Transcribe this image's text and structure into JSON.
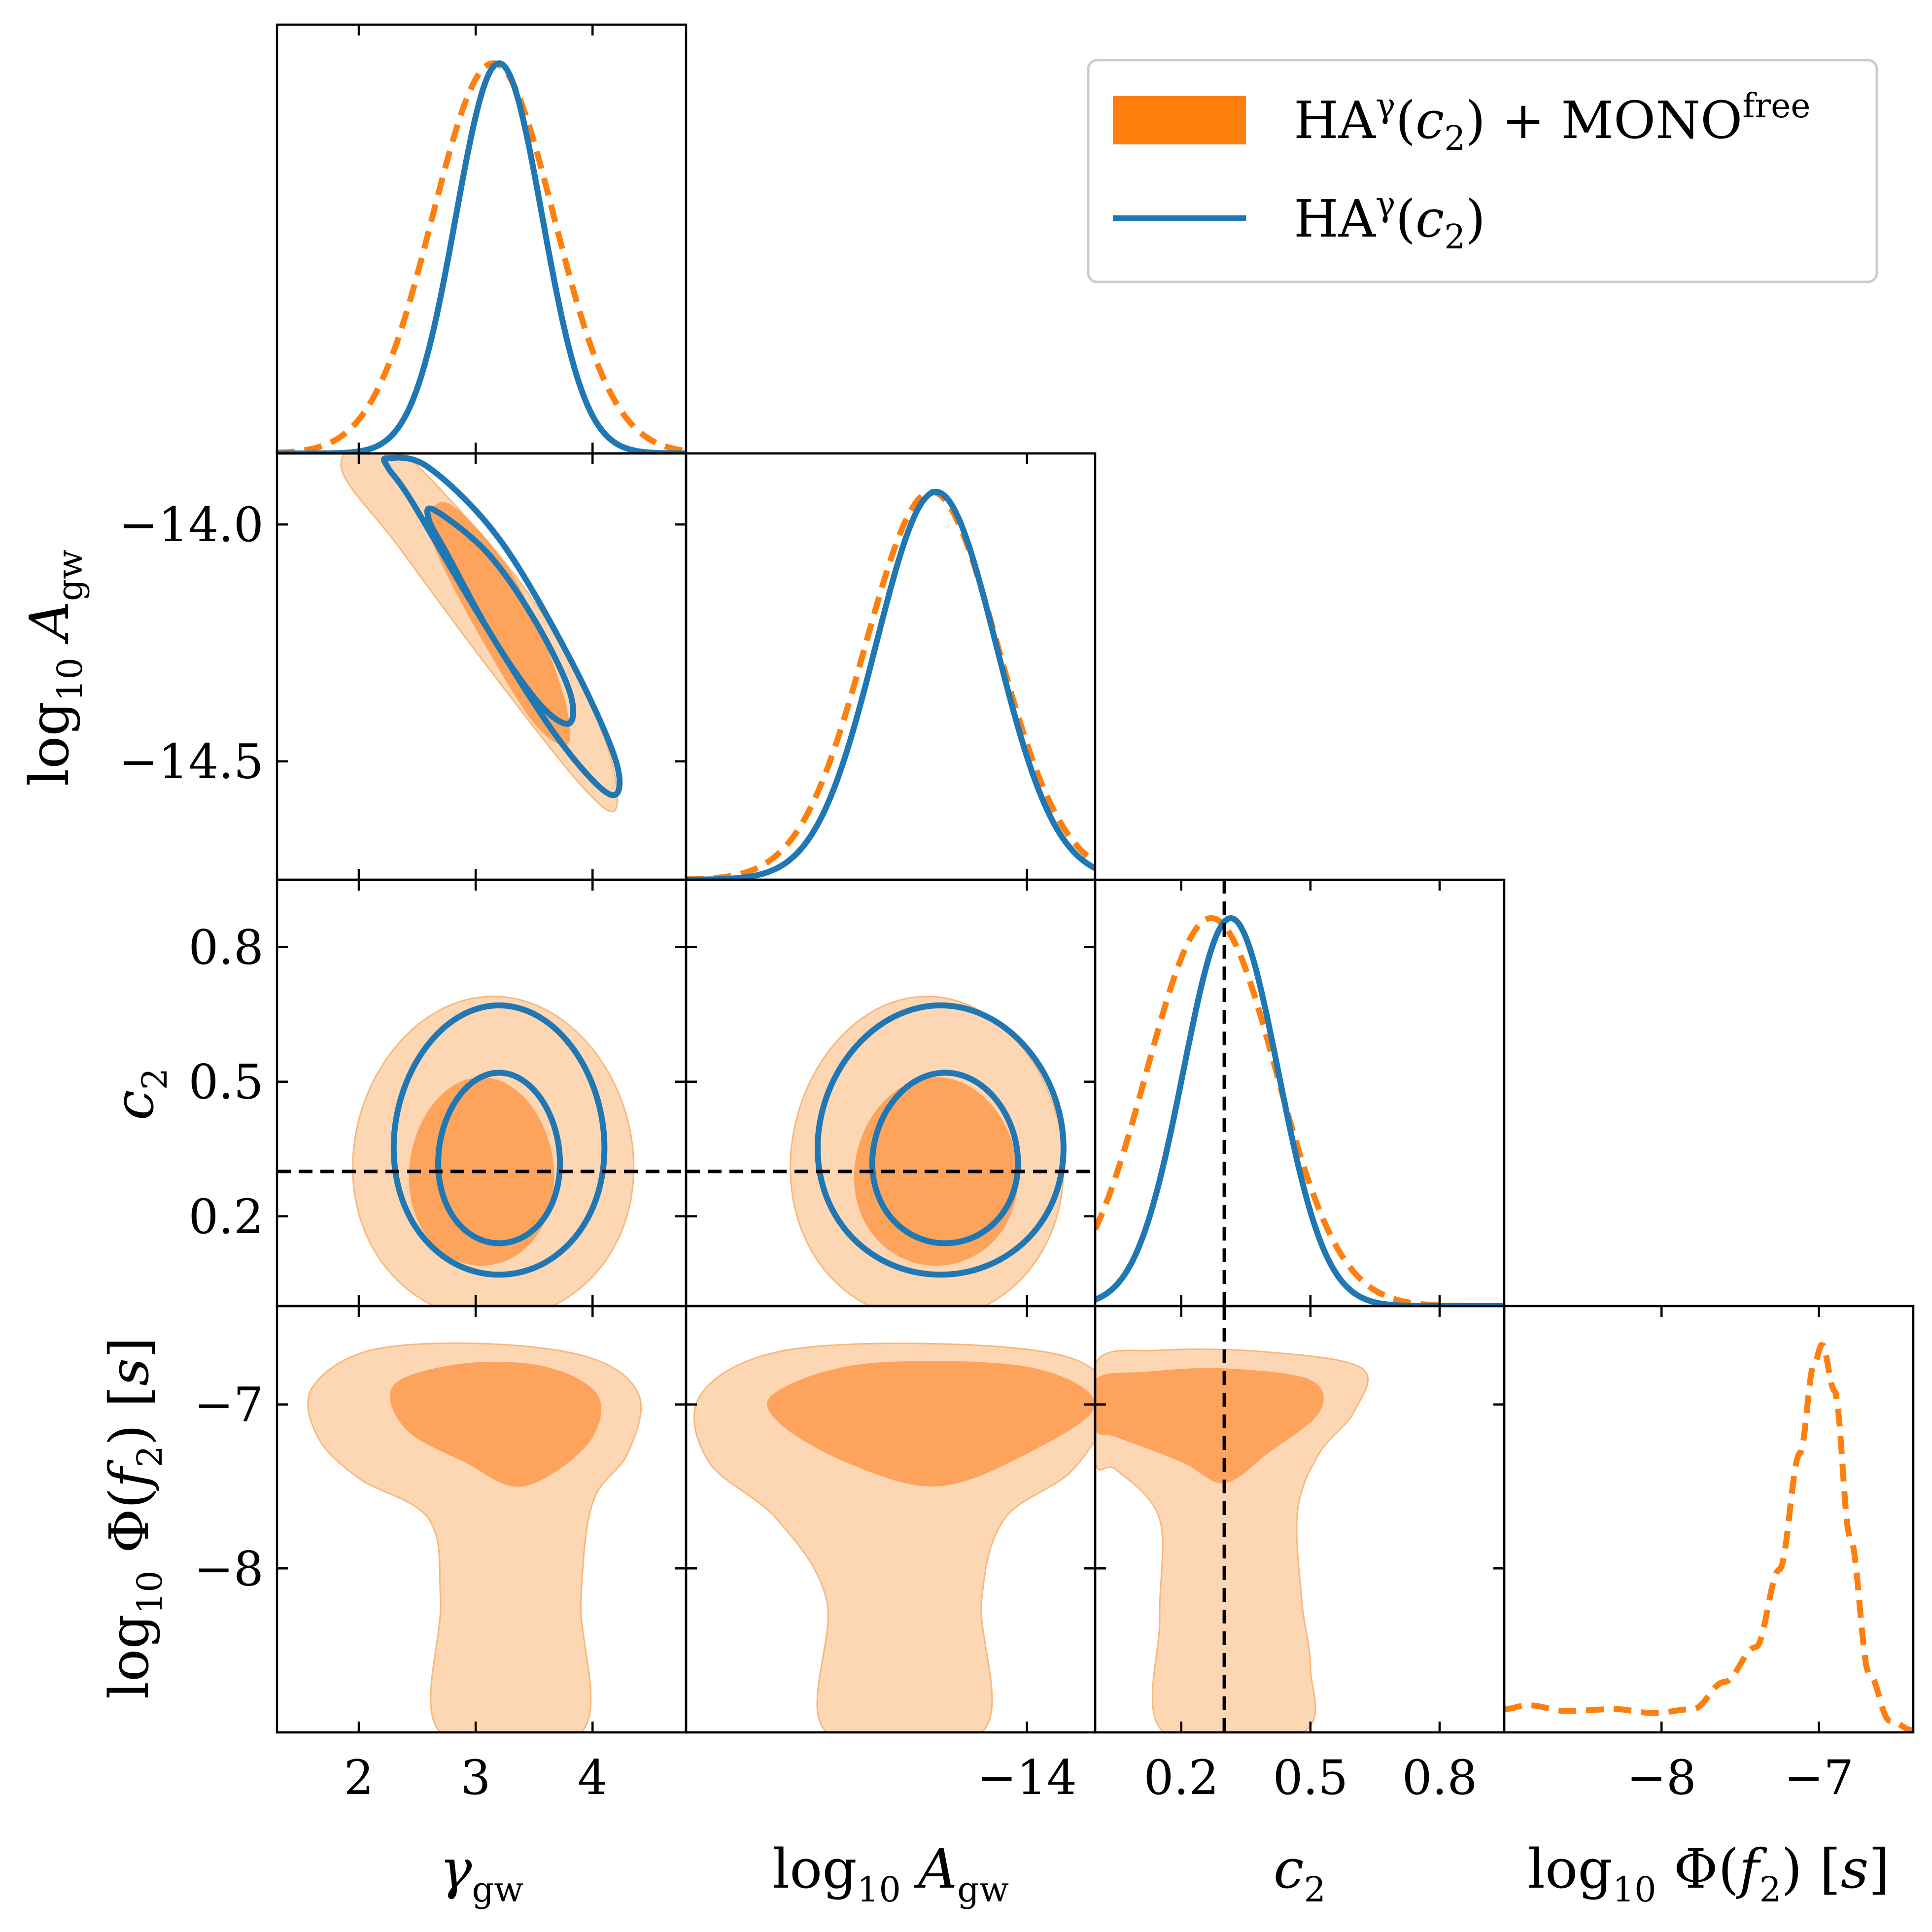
{
  "chart_data": {
    "type": "corner",
    "parameters": [
      {
        "key": "gamma",
        "label": "γgw",
        "range": [
          1.3,
          4.8
        ],
        "ticks": [
          2,
          3,
          4
        ],
        "tick_labels": [
          "2",
          "3",
          "4"
        ]
      },
      {
        "key": "logA",
        "label": "log10 Agw",
        "range": [
          -14.75,
          -13.85
        ],
        "ticks": [
          -14.0,
          -14.5
        ],
        "tick_labels": [
          "−14.0",
          "−14.5"
        ],
        "x_ticks": [
          -14.0
        ],
        "x_tick_labels": [
          "−14"
        ]
      },
      {
        "key": "c2",
        "label": "c2",
        "range": [
          0.0,
          0.95
        ],
        "ticks": [
          0.2,
          0.5,
          0.8
        ],
        "tick_labels": [
          "0.2",
          "0.5",
          "0.8"
        ]
      },
      {
        "key": "logPhi",
        "label": "log10 Φ(f2) [s]",
        "range": [
          -9.0,
          -6.4
        ],
        "ticks": [
          -8,
          -7
        ],
        "tick_labels": [
          "−8",
          "−7"
        ]
      }
    ],
    "axis_titles": {
      "gamma": {
        "main": "γ",
        "sub": "gw"
      },
      "logA": {
        "main": "log",
        "sub": "10",
        "var": "A",
        "var_sub": "gw"
      },
      "c2": {
        "main": "c",
        "sub": "2"
      },
      "logPhi": {
        "main": "log",
        "sub": "10",
        "rest": " Φ(",
        "var": "f",
        "var_sub": "2",
        "tail": ") [",
        "unit": "s",
        "end": "]"
      }
    },
    "legend": [
      {
        "series": "HAγ(c2) + MONOfree",
        "style": "filled-orange",
        "parts": {
          "main": "HA",
          "sup": "γ",
          "open": "(",
          "var": "c",
          "var_sub": "2",
          "close": ") + MONO",
          "sup2": "free"
        }
      },
      {
        "series": "HAγ(c2)",
        "style": "solid-blue",
        "parts": {
          "main": "HA",
          "sup": "γ",
          "open": "(",
          "var": "c",
          "var_sub": "2",
          "close": ")"
        }
      }
    ],
    "reference_value": {
      "parameter": "c2",
      "value": 0.3
    },
    "series": [
      {
        "name": "HAγ(c2) + MONOfree",
        "color": "#ff7f0e",
        "marginals": {
          "gamma": {
            "mean": 3.15,
            "sd": 0.52
          },
          "logA": {
            "mean": -14.21,
            "sd": 0.145
          },
          "c2": {
            "mean": 0.27,
            "sd": 0.15
          },
          "logPhi": {
            "curve": [
              [
                -9.0,
                0.06
              ],
              [
                -8.85,
                0.07
              ],
              [
                -8.6,
                0.055
              ],
              [
                -8.3,
                0.06
              ],
              [
                -8.05,
                0.05
              ],
              [
                -7.8,
                0.06
              ],
              [
                -7.6,
                0.13
              ],
              [
                -7.4,
                0.22
              ],
              [
                -7.25,
                0.42
              ],
              [
                -7.12,
                0.72
              ],
              [
                -7.03,
                0.95
              ],
              [
                -6.98,
                1.0
              ],
              [
                -6.9,
                0.88
              ],
              [
                -6.8,
                0.5
              ],
              [
                -6.68,
                0.15
              ],
              [
                -6.55,
                0.03
              ],
              [
                -6.4,
                0.005
              ]
            ]
          }
        }
      },
      {
        "name": "HAγ(c2)",
        "color": "#1f77b4",
        "marginals": {
          "gamma": {
            "mean": 3.2,
            "sd": 0.37
          },
          "logA": {
            "mean": -14.2,
            "sd": 0.132
          },
          "c2": {
            "mean": 0.315,
            "sd": 0.11
          }
        }
      }
    ],
    "pair_contours": {
      "gamma-logA": {
        "orange_95": [
          [
            2.2,
            -13.82
          ],
          [
            2.9,
            -13.98
          ],
          [
            3.6,
            -14.2
          ],
          [
            4.1,
            -14.45
          ],
          [
            4.2,
            -14.6
          ],
          [
            3.9,
            -14.55
          ],
          [
            3.1,
            -14.3
          ],
          [
            2.35,
            -14.05
          ],
          [
            1.85,
            -13.88
          ]
        ],
        "orange_68": [
          [
            2.8,
            -13.96
          ],
          [
            3.3,
            -14.1
          ],
          [
            3.7,
            -14.32
          ],
          [
            3.8,
            -14.46
          ],
          [
            3.5,
            -14.42
          ],
          [
            3.0,
            -14.22
          ],
          [
            2.65,
            -14.05
          ],
          [
            2.6,
            -13.98
          ]
        ],
        "blue_95": [
          [
            2.25,
            -13.86
          ],
          [
            2.6,
            -13.88
          ],
          [
            3.2,
            -14.03
          ],
          [
            3.8,
            -14.28
          ],
          [
            4.2,
            -14.5
          ],
          [
            4.15,
            -14.57
          ],
          [
            3.7,
            -14.45
          ],
          [
            3.05,
            -14.2
          ],
          [
            2.45,
            -13.95
          ],
          [
            2.25,
            -13.88
          ]
        ],
        "blue_68": [
          [
            2.65,
            -13.97
          ],
          [
            3.1,
            -14.06
          ],
          [
            3.5,
            -14.2
          ],
          [
            3.8,
            -14.35
          ],
          [
            3.8,
            -14.42
          ],
          [
            3.55,
            -14.38
          ],
          [
            3.15,
            -14.24
          ],
          [
            2.75,
            -14.06
          ],
          [
            2.6,
            -13.99
          ]
        ]
      },
      "gamma-c2": {
        "orange_95": {
          "center": [
            3.15,
            0.33
          ],
          "radii": [
            1.2,
            0.36
          ]
        },
        "orange_68": {
          "center": [
            3.05,
            0.3
          ],
          "radii": [
            0.62,
            0.21
          ]
        },
        "blue_95": {
          "center": [
            3.2,
            0.37
          ],
          "radii": [
            0.9,
            0.3
          ]
        },
        "blue_68": {
          "center": [
            3.2,
            0.33
          ],
          "radii": [
            0.52,
            0.19
          ]
        }
      },
      "logA-c2": {
        "orange_95": {
          "center": [
            -14.22,
            0.33
          ],
          "radii": [
            0.3,
            0.36
          ]
        },
        "orange_68": {
          "center": [
            -14.2,
            0.3
          ],
          "radii": [
            0.18,
            0.21
          ]
        },
        "blue_95": {
          "center": [
            -14.19,
            0.37
          ],
          "radii": [
            0.27,
            0.3
          ]
        },
        "blue_68": {
          "center": [
            -14.18,
            0.33
          ],
          "radii": [
            0.16,
            0.19
          ]
        }
      },
      "gamma-logPhi": {
        "orange_95": [
          [
            1.6,
            -6.9
          ],
          [
            2.1,
            -6.67
          ],
          [
            3.1,
            -6.63
          ],
          [
            4.0,
            -6.72
          ],
          [
            4.4,
            -6.95
          ],
          [
            4.3,
            -7.3
          ],
          [
            4.0,
            -7.6
          ],
          [
            3.9,
            -8.2
          ],
          [
            3.9,
            -9.0
          ],
          [
            2.7,
            -9.0
          ],
          [
            2.7,
            -8.2
          ],
          [
            2.6,
            -7.7
          ],
          [
            2.0,
            -7.45
          ],
          [
            1.65,
            -7.2
          ]
        ],
        "orange_68": [
          [
            2.3,
            -6.88
          ],
          [
            2.9,
            -6.75
          ],
          [
            3.6,
            -6.77
          ],
          [
            4.05,
            -6.95
          ],
          [
            3.95,
            -7.25
          ],
          [
            3.4,
            -7.5
          ],
          [
            2.9,
            -7.35
          ],
          [
            2.4,
            -7.15
          ]
        ]
      },
      "logA-logPhi": {
        "orange_95": [
          [
            -14.72,
            -6.95
          ],
          [
            -14.55,
            -6.68
          ],
          [
            -14.2,
            -6.63
          ],
          [
            -13.9,
            -6.72
          ],
          [
            -13.82,
            -7.0
          ],
          [
            -13.9,
            -7.4
          ],
          [
            -14.05,
            -7.7
          ],
          [
            -14.1,
            -8.2
          ],
          [
            -14.1,
            -9.0
          ],
          [
            -14.44,
            -9.0
          ],
          [
            -14.44,
            -8.2
          ],
          [
            -14.55,
            -7.7
          ],
          [
            -14.7,
            -7.35
          ]
        ],
        "orange_68": [
          [
            -14.55,
            -6.92
          ],
          [
            -14.35,
            -6.75
          ],
          [
            -14.0,
            -6.77
          ],
          [
            -13.85,
            -7.0
          ],
          [
            -14.0,
            -7.3
          ],
          [
            -14.2,
            -7.5
          ],
          [
            -14.4,
            -7.35
          ],
          [
            -14.55,
            -7.1
          ]
        ]
      },
      "c2-logPhi": {
        "orange_95": [
          [
            0.0,
            -6.75
          ],
          [
            0.15,
            -6.67
          ],
          [
            0.4,
            -6.68
          ],
          [
            0.62,
            -6.78
          ],
          [
            0.6,
            -7.05
          ],
          [
            0.52,
            -7.3
          ],
          [
            0.47,
            -7.65
          ],
          [
            0.48,
            -8.2
          ],
          [
            0.5,
            -8.6
          ],
          [
            0.48,
            -9.0
          ],
          [
            0.16,
            -9.0
          ],
          [
            0.15,
            -8.3
          ],
          [
            0.15,
            -7.7
          ],
          [
            0.05,
            -7.4
          ],
          [
            0.0,
            -7.35
          ]
        ],
        "orange_68": [
          [
            0.0,
            -6.85
          ],
          [
            0.12,
            -6.8
          ],
          [
            0.3,
            -6.78
          ],
          [
            0.5,
            -6.85
          ],
          [
            0.52,
            -7.05
          ],
          [
            0.4,
            -7.3
          ],
          [
            0.3,
            -7.48
          ],
          [
            0.2,
            -7.35
          ],
          [
            0.05,
            -7.2
          ],
          [
            0.0,
            -7.15
          ]
        ]
      }
    }
  }
}
